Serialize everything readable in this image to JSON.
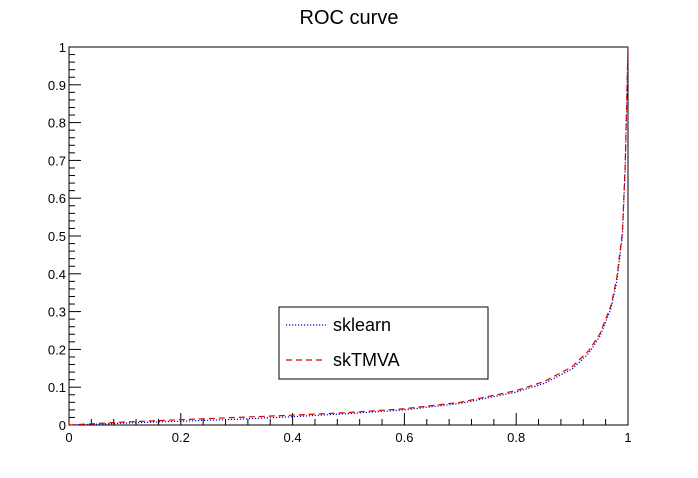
{
  "chart_data": {
    "type": "line",
    "title": "ROC curve",
    "xlabel": "",
    "ylabel": "",
    "xlim": [
      0,
      1
    ],
    "ylim": [
      0,
      1
    ],
    "x_ticks": [
      "0",
      "0.2",
      "0.4",
      "0.6",
      "0.8",
      "1"
    ],
    "y_ticks": [
      "0",
      "0.1",
      "0.2",
      "0.3",
      "0.4",
      "0.5",
      "0.6",
      "0.7",
      "0.8",
      "0.9",
      "1"
    ],
    "grid": false,
    "legend_position": "lower-center",
    "series": [
      {
        "name": "sklearn",
        "color": "#0000cc",
        "line_style": "dotted",
        "x": [
          0.0,
          0.05,
          0.1,
          0.2,
          0.3,
          0.4,
          0.5,
          0.6,
          0.7,
          0.8,
          0.85,
          0.9,
          0.93,
          0.95,
          0.97,
          0.98,
          0.99,
          0.995,
          1.0
        ],
        "y": [
          0.0,
          0.002,
          0.005,
          0.01,
          0.015,
          0.022,
          0.03,
          0.04,
          0.057,
          0.087,
          0.11,
          0.148,
          0.19,
          0.235,
          0.31,
          0.38,
          0.5,
          0.68,
          1.0
        ]
      },
      {
        "name": "skTMVA",
        "color": "#dd0000",
        "line_style": "dashed",
        "x": [
          0.0,
          0.05,
          0.1,
          0.2,
          0.3,
          0.4,
          0.5,
          0.6,
          0.7,
          0.8,
          0.85,
          0.9,
          0.93,
          0.95,
          0.97,
          0.98,
          0.99,
          0.995,
          1.0
        ],
        "y": [
          0.0,
          0.004,
          0.008,
          0.014,
          0.02,
          0.026,
          0.033,
          0.043,
          0.06,
          0.091,
          0.115,
          0.154,
          0.197,
          0.242,
          0.318,
          0.39,
          0.51,
          0.69,
          1.0
        ]
      }
    ]
  }
}
